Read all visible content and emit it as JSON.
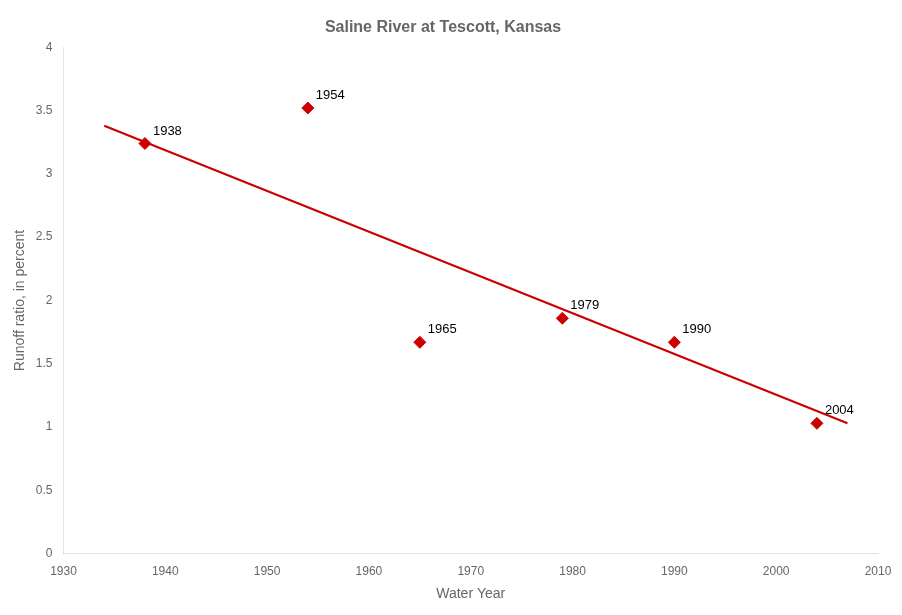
{
  "chart_data": {
    "type": "scatter",
    "title": "Saline River at Tescott, Kansas",
    "xlabel": "Water Year",
    "ylabel": "Runoff ratio, in percent",
    "xlim": [
      1930,
      2010
    ],
    "ylim": [
      0,
      4
    ],
    "xticks": [
      1930,
      1940,
      1950,
      1960,
      1970,
      1980,
      1990,
      2000,
      2010
    ],
    "yticks": [
      0,
      0.5,
      1.0,
      1.5,
      2.0,
      2.5,
      3.0,
      3.5,
      4.0
    ],
    "grid": false,
    "series": [
      {
        "type": "line",
        "color": "#cc0000",
        "x": [
          1934,
          2007
        ],
        "values": [
          3.38,
          1.03
        ]
      },
      {
        "type": "scatter",
        "color": "#cc0000",
        "marker": "diamond",
        "x": [
          1938,
          1954,
          1965,
          1979,
          1990,
          2004
        ],
        "values": [
          3.24,
          3.52,
          1.67,
          1.86,
          1.67,
          1.03
        ]
      }
    ],
    "annotations": [
      {
        "text": "1938",
        "x": 1938,
        "y": 3.24
      },
      {
        "text": "1954",
        "x": 1954,
        "y": 3.52
      },
      {
        "text": "1965",
        "x": 1965,
        "y": 1.67
      },
      {
        "text": "1979",
        "x": 1979,
        "y": 1.86
      },
      {
        "text": "1990",
        "x": 1990,
        "y": 1.67
      },
      {
        "text": "2004",
        "x": 2004,
        "y": 1.03
      }
    ]
  }
}
